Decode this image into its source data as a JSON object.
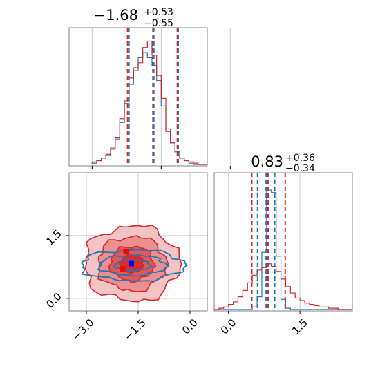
{
  "chart_data": [
    {
      "panel": "top-left-histogram",
      "type": "histogram",
      "title": {
        "main": "−1.68",
        "sup": "+0.53",
        "sub": "−0.55"
      },
      "xlim": [
        -3.5,
        -0.5
      ],
      "grid": true,
      "bins": [
        -3.0,
        -2.9,
        -2.8,
        -2.7,
        -2.6,
        -2.5,
        -2.4,
        -2.3,
        -2.2,
        -2.1,
        -2.0,
        -1.9,
        -1.8,
        -1.7,
        -1.6,
        -1.5,
        -1.4,
        -1.3,
        -1.2,
        -1.1,
        -1.0,
        -0.9,
        -0.8,
        -0.7,
        -0.6,
        -0.5
      ],
      "series": [
        {
          "color": "#1f77b4",
          "counts": [
            0.01,
            0.03,
            0.05,
            0.07,
            0.12,
            0.2,
            0.33,
            0.48,
            0.63,
            0.76,
            0.84,
            0.88,
            0.84,
            0.78,
            0.66,
            0.46,
            0.28,
            0.17,
            0.1,
            0.05,
            0.03,
            0.01,
            0.0,
            0.0,
            0.0
          ]
        },
        {
          "color": "#d62728",
          "counts": [
            0.02,
            0.03,
            0.05,
            0.08,
            0.13,
            0.21,
            0.36,
            0.5,
            0.68,
            0.74,
            0.8,
            0.92,
            0.97,
            0.86,
            0.7,
            0.52,
            0.26,
            0.17,
            0.09,
            0.05,
            0.03,
            0.02,
            0.01,
            0.0,
            0.0
          ]
        }
      ],
      "quantile_lines": [
        {
          "color": "#d62728",
          "values": [
            -2.23,
            -1.68,
            -1.15
          ]
        },
        {
          "color": "#1f77b4",
          "values": [
            -2.2,
            -1.66,
            -1.13
          ]
        }
      ]
    },
    {
      "panel": "bottom-right-histogram",
      "type": "histogram",
      "title": {
        "main": "0.83",
        "sup": "+0.36",
        "sub": "−0.34"
      },
      "xlim": [
        -0.3,
        2.6
      ],
      "grid": true,
      "bins": [
        -0.3,
        -0.2,
        -0.1,
        0.0,
        0.1,
        0.2,
        0.3,
        0.4,
        0.5,
        0.6,
        0.7,
        0.8,
        0.9,
        1.0,
        1.1,
        1.2,
        1.3,
        1.4,
        1.5,
        1.6,
        1.7,
        1.8,
        1.9,
        2.0,
        2.1,
        2.2,
        2.3,
        2.4,
        2.5,
        2.6
      ],
      "series": [
        {
          "color": "#1f77b4",
          "counts": [
            0,
            0,
            0,
            0,
            0,
            0,
            0,
            0,
            0.02,
            0.1,
            0.45,
            0.94,
            0.92,
            0.42,
            0.08,
            0.01,
            0,
            0,
            0,
            0,
            0,
            0,
            0,
            0,
            0,
            0,
            0,
            0,
            0
          ]
        },
        {
          "color": "#d62728",
          "counts": [
            0.0,
            0.01,
            0.02,
            0.04,
            0.06,
            0.1,
            0.15,
            0.21,
            0.27,
            0.31,
            0.33,
            0.36,
            0.34,
            0.3,
            0.24,
            0.18,
            0.13,
            0.09,
            0.07,
            0.05,
            0.04,
            0.03,
            0.02,
            0.02,
            0.01,
            0.01,
            0.0,
            0.0,
            0.0
          ]
        }
      ],
      "quantile_lines": [
        {
          "color": "#d62728",
          "values": [
            0.49,
            0.83,
            1.19
          ]
        },
        {
          "color": "#1f77b4",
          "values": [
            0.61,
            0.79,
            0.97
          ]
        }
      ]
    },
    {
      "panel": "bottom-left-contour",
      "type": "contour",
      "xlim": [
        -3.5,
        0.5
      ],
      "ylim": [
        -0.3,
        3.0
      ],
      "xticks": [
        "−3.0",
        "−1.5",
        "0.0"
      ],
      "xtick_values": [
        -3.0,
        -1.5,
        0.0
      ],
      "yticks": [
        "0.0",
        "1.5"
      ],
      "ytick_values": [
        0.0,
        1.5
      ],
      "grid": true,
      "series": [
        {
          "color": "#d62728",
          "center": [
            -1.68,
            0.83
          ],
          "spread": [
            0.55,
            0.36
          ],
          "levels": [
            0.6,
            1.15,
            1.8,
            2.5
          ]
        },
        {
          "color": "#1f77b4",
          "center": [
            -1.66,
            0.79
          ],
          "spread": [
            0.65,
            0.16
          ],
          "levels": [
            0.8,
            1.5,
            2.3
          ]
        }
      ],
      "markers": [
        {
          "color": "#ff0000",
          "x": -1.85,
          "y": 1.12
        },
        {
          "color": "#ff0000",
          "x": -1.95,
          "y": 0.7
        },
        {
          "color": "#0000ff",
          "x": -1.7,
          "y": 0.83
        }
      ]
    }
  ]
}
